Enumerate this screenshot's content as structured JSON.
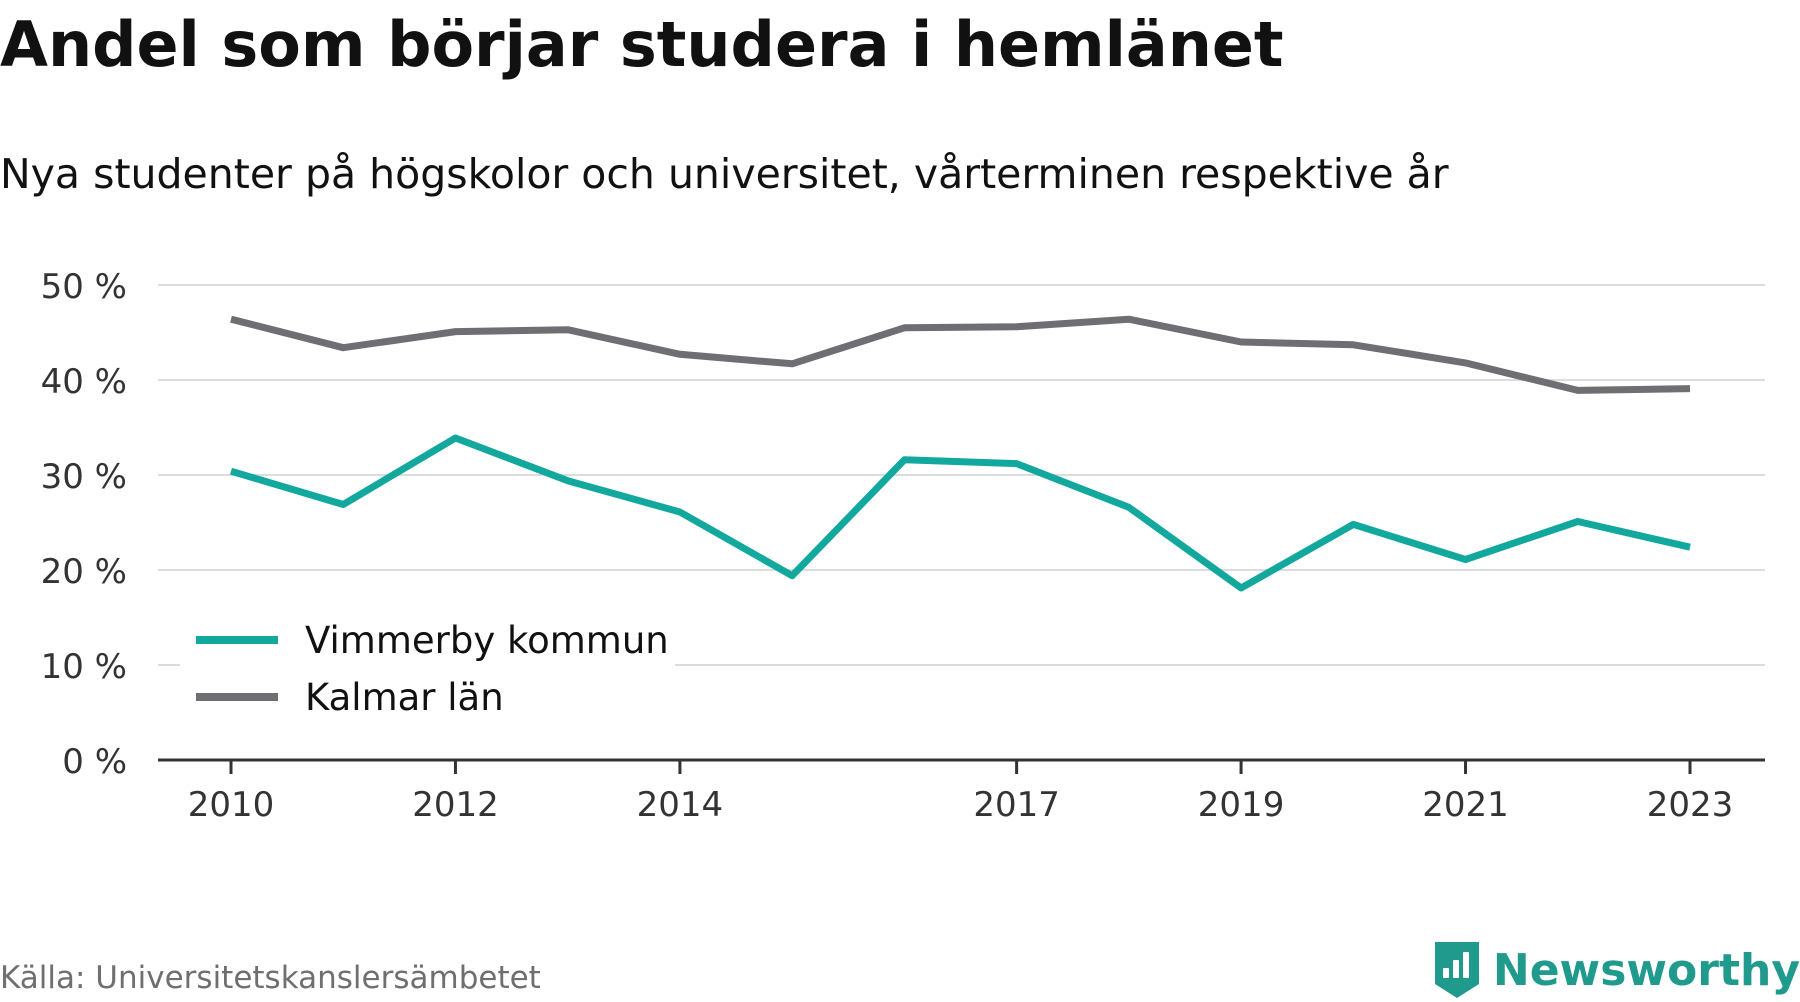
{
  "header": {
    "title": "Andel som börjar studera i hemlänet",
    "subtitle": "Nya studenter på högskolor och universitet, vårterminen respektive år"
  },
  "footer": {
    "source": "Källa: Universitetskanslersämbetet",
    "brand": "Newsworthy",
    "brand_color": "#1f9a8c"
  },
  "chart_data": {
    "type": "line",
    "title": "Andel som börjar studera i hemlänet",
    "subtitle": "Nya studenter på högskolor och universitet, vårterminen respektive år",
    "x": [
      2010,
      2011,
      2012,
      2013,
      2014,
      2015,
      2016,
      2017,
      2018,
      2019,
      2020,
      2021,
      2022,
      2023
    ],
    "x_tick_labels": [
      "2010",
      "2012",
      "2014",
      "2017",
      "2019",
      "2021",
      "2023"
    ],
    "y_ticks": [
      0,
      10,
      20,
      30,
      40,
      50
    ],
    "y_tick_labels": [
      "0 %",
      "10 %",
      "20 %",
      "30 %",
      "40 %",
      "50 %"
    ],
    "ylim": [
      0,
      50
    ],
    "grid": true,
    "legend_position": "bottom-left",
    "series": [
      {
        "name": "Vimmerby kommun",
        "color": "#13a89e",
        "values": [
          30.4,
          26.9,
          33.9,
          29.4,
          26.1,
          19.4,
          31.6,
          31.2,
          26.6,
          18.1,
          24.8,
          21.1,
          25.1,
          22.4
        ]
      },
      {
        "name": "Kalmar län",
        "color": "#6e6e73",
        "values": [
          46.4,
          43.4,
          45.1,
          45.3,
          42.7,
          41.7,
          45.5,
          45.6,
          46.4,
          44.0,
          43.7,
          41.8,
          38.9,
          39.1
        ]
      }
    ]
  }
}
